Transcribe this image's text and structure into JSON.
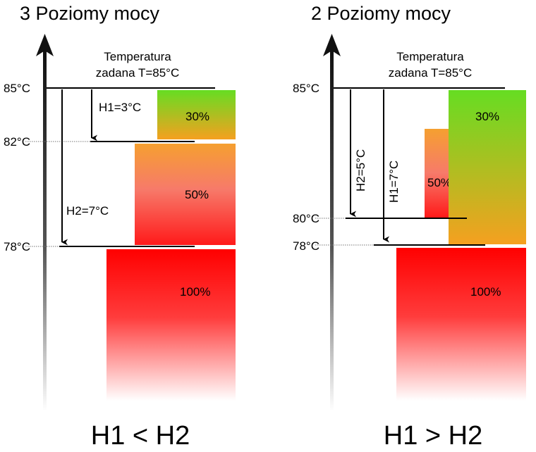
{
  "left": {
    "title": "3 Poziomy mocy",
    "setpoint_line1": "Temperatura",
    "setpoint_line2": "zadana T=85°C",
    "ticks": [
      "85°C",
      "82°C",
      "78°C"
    ],
    "h1": "H1=3°C",
    "h2": "H2=7°C",
    "levels": [
      "30%",
      "50%",
      "100%"
    ],
    "result": "H1 < H2"
  },
  "right": {
    "title": "2 Poziomy mocy",
    "setpoint_line1": "Temperatura",
    "setpoint_line2": "zadana T=85°C",
    "ticks": [
      "85°C",
      "80°C",
      "78°C"
    ],
    "h2": "H2=5°C",
    "h1": "H1=7°C",
    "levels": [
      "30%",
      "50%",
      "100%"
    ],
    "result": "H1 > H2"
  },
  "colors": {
    "green": "#66dd22",
    "orange": "#f5a020",
    "salmon": "#f77a6a",
    "red": "#ff0000",
    "axis_dark": "#111111"
  }
}
